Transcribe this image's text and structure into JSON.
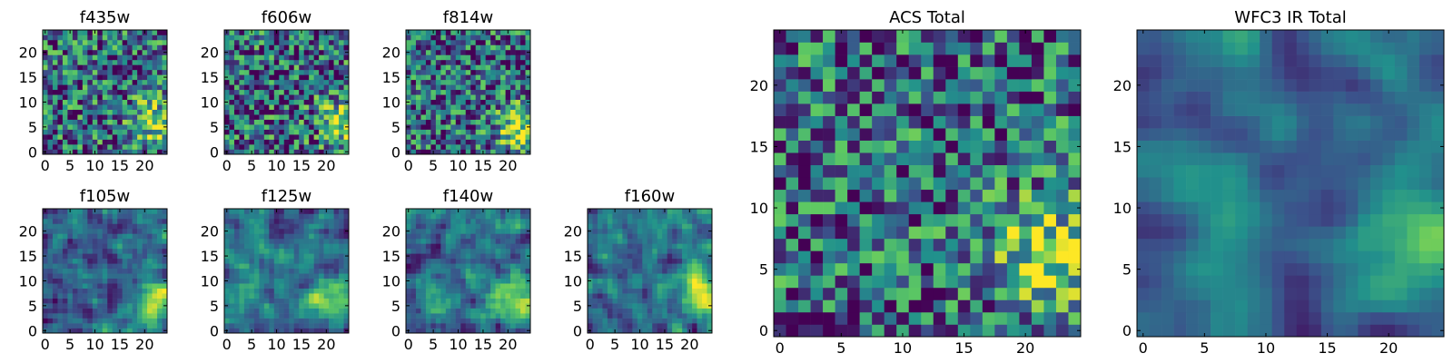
{
  "figure": {
    "colormap": "viridis",
    "colors": [
      "#440154",
      "#3b528b",
      "#21918c",
      "#5ec962",
      "#fde725"
    ]
  },
  "chart_data": [
    {
      "type": "heatmap",
      "title": "f435w",
      "size": 25,
      "xticks": [
        "0",
        "5",
        "10",
        "15",
        "20"
      ],
      "yticks": [
        "0",
        "5",
        "10",
        "15",
        "20"
      ],
      "xlim": [
        0,
        25
      ],
      "ylim": [
        0,
        25
      ],
      "seed": 11,
      "noise": 0.9,
      "blur": 0,
      "bright_spot": [
        22,
        6
      ]
    },
    {
      "type": "heatmap",
      "title": "f606w",
      "size": 25,
      "xticks": [
        "0",
        "5",
        "10",
        "15",
        "20"
      ],
      "yticks": [
        "0",
        "5",
        "10",
        "15",
        "20"
      ],
      "xlim": [
        0,
        25
      ],
      "ylim": [
        0,
        25
      ],
      "seed": 23,
      "noise": 0.9,
      "blur": 0,
      "bright_spot": [
        23,
        6
      ]
    },
    {
      "type": "heatmap",
      "title": "f814w",
      "size": 25,
      "xticks": [
        "0",
        "5",
        "10",
        "15",
        "20"
      ],
      "yticks": [
        "0",
        "5",
        "10",
        "15",
        "20"
      ],
      "xlim": [
        0,
        25
      ],
      "ylim": [
        0,
        25
      ],
      "seed": 37,
      "noise": 0.85,
      "blur": 0,
      "bright_spot": [
        22,
        5
      ]
    },
    {
      "type": "heatmap",
      "title": "f105w",
      "size": 25,
      "xticks": [
        "0",
        "5",
        "10",
        "15",
        "20"
      ],
      "yticks": [
        "0",
        "5",
        "10",
        "15",
        "20"
      ],
      "xlim": [
        0,
        25
      ],
      "ylim": [
        0,
        25
      ],
      "seed": 41,
      "noise": 0.7,
      "blur": 1,
      "bright_spot": [
        22,
        6
      ]
    },
    {
      "type": "heatmap",
      "title": "f125w",
      "size": 25,
      "xticks": [
        "0",
        "5",
        "10",
        "15",
        "20"
      ],
      "yticks": [
        "0",
        "5",
        "10",
        "15",
        "20"
      ],
      "xlim": [
        0,
        25
      ],
      "ylim": [
        0,
        25
      ],
      "seed": 53,
      "noise": 0.7,
      "blur": 1,
      "bright_spot": [
        22,
        6
      ]
    },
    {
      "type": "heatmap",
      "title": "f140w",
      "size": 25,
      "xticks": [
        "0",
        "5",
        "10",
        "15",
        "20"
      ],
      "yticks": [
        "0",
        "5",
        "10",
        "15",
        "20"
      ],
      "xlim": [
        0,
        25
      ],
      "ylim": [
        0,
        25
      ],
      "seed": 67,
      "noise": 0.7,
      "blur": 1,
      "bright_spot": [
        22,
        6
      ]
    },
    {
      "type": "heatmap",
      "title": "f160w",
      "size": 25,
      "xticks": [
        "0",
        "5",
        "10",
        "15",
        "20"
      ],
      "yticks": [
        "0",
        "5",
        "10",
        "15",
        "20"
      ],
      "xlim": [
        0,
        25
      ],
      "ylim": [
        0,
        25
      ],
      "seed": 79,
      "noise": 0.7,
      "blur": 1,
      "bright_spot": [
        22,
        8
      ]
    },
    {
      "type": "heatmap",
      "title": "ACS Total",
      "size": 25,
      "xticks": [
        "0",
        "5",
        "10",
        "15",
        "20"
      ],
      "yticks": [
        "0",
        "5",
        "10",
        "15",
        "20"
      ],
      "xlim": [
        0,
        25
      ],
      "ylim": [
        0,
        25
      ],
      "seed": 97,
      "noise": 0.85,
      "blur": 0,
      "bright_spot": [
        22,
        6
      ]
    },
    {
      "type": "heatmap",
      "title": "WFC3 IR Total",
      "size": 25,
      "xticks": [
        "0",
        "5",
        "10",
        "15",
        "20"
      ],
      "yticks": [
        "0",
        "5",
        "10",
        "15",
        "20"
      ],
      "xlim": [
        0,
        25
      ],
      "ylim": [
        0,
        25
      ],
      "seed": 101,
      "noise": 0.5,
      "blur": 2,
      "bright_spot": [
        23,
        8
      ]
    }
  ]
}
